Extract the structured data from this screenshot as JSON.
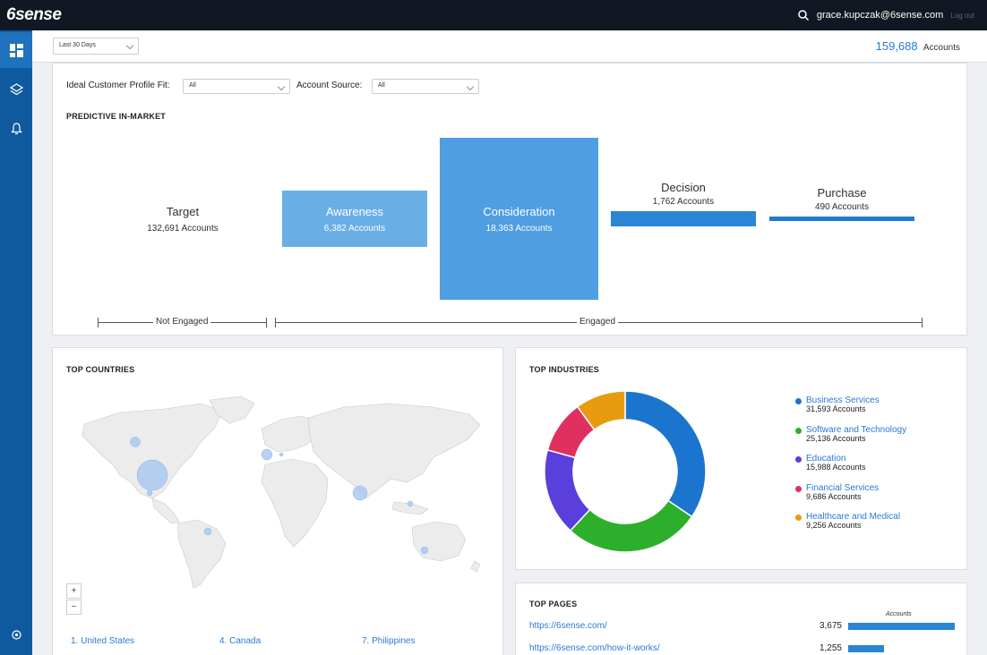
{
  "app": {
    "logo": "6sense",
    "user": "grace.kupczak@6sense.com",
    "logout": "Log out"
  },
  "filters": {
    "date_range": "Last 30 Days",
    "total_accounts": "159,688",
    "total_accounts_label": "Accounts",
    "icp_label": "Ideal Customer Profile Fit:",
    "icp_value": "All",
    "source_label": "Account Source:",
    "source_value": "All"
  },
  "predictive": {
    "title": "PREDICTIVE IN-MARKET",
    "stages": [
      {
        "name": "Target",
        "count": "132,691 Accounts"
      },
      {
        "name": "Awareness",
        "count": "6,382 Accounts"
      },
      {
        "name": "Consideration",
        "count": "18,363 Accounts"
      },
      {
        "name": "Decision",
        "count": "1,762 Accounts"
      },
      {
        "name": "Purchase",
        "count": "490 Accounts"
      }
    ],
    "not_engaged": "Not Engaged",
    "engaged": "Engaged"
  },
  "countries": {
    "title": "TOP COUNTRIES",
    "zoom_in": "+",
    "zoom_out": "−",
    "list": [
      "1. United States",
      "4. Canada",
      "7. Philippines"
    ]
  },
  "industries": {
    "title": "TOP INDUSTRIES",
    "items": [
      {
        "name": "Business Services",
        "count": "31,593 Accounts",
        "value": 31593,
        "color": "#1b75cf"
      },
      {
        "name": "Software and Technology",
        "count": "25,136 Accounts",
        "value": 25136,
        "color": "#2cb02c"
      },
      {
        "name": "Education",
        "count": "15,988 Accounts",
        "value": 15988,
        "color": "#5a3fdc"
      },
      {
        "name": "Financial Services",
        "count": "9,686 Accounts",
        "value": 9686,
        "color": "#e0305f"
      },
      {
        "name": "Healthcare and Medical",
        "count": "9,256 Accounts",
        "value": 9256,
        "color": "#e79c10"
      }
    ]
  },
  "pages": {
    "title": "TOP PAGES",
    "accounts_header": "Accounts",
    "rows": [
      {
        "url": "https://6sense.com/",
        "value": "3,675",
        "share": 1.0
      },
      {
        "url": "https://6sense.com/how-it-works/",
        "value": "1,255",
        "share": 0.34
      }
    ]
  }
}
